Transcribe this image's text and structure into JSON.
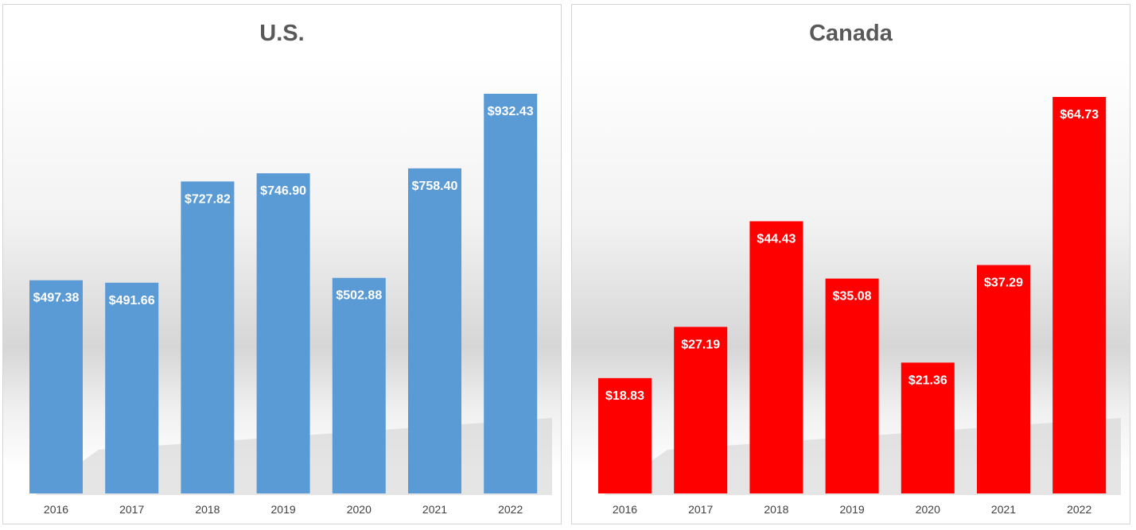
{
  "chart_data": [
    {
      "type": "bar",
      "title": "U.S.",
      "categories": [
        "2016",
        "2017",
        "2018",
        "2019",
        "2020",
        "2021",
        "2022"
      ],
      "values": [
        497.38,
        491.66,
        727.82,
        746.9,
        502.88,
        758.4,
        932.43
      ],
      "data_labels": [
        "$497.38",
        "$491.66",
        "$727.82",
        "$746.90",
        "$502.88",
        "$758.40",
        "$932.43"
      ],
      "color": "#5b9bd5",
      "xlabel": "",
      "ylabel": "",
      "ylim": [
        0,
        1000
      ],
      "grid": false,
      "legend": "none"
    },
    {
      "type": "bar",
      "title": "Canada",
      "categories": [
        "2016",
        "2017",
        "2018",
        "2019",
        "2020",
        "2021",
        "2022"
      ],
      "values": [
        18.83,
        27.19,
        44.43,
        35.08,
        21.36,
        37.29,
        64.73
      ],
      "data_labels": [
        "$18.83",
        "$27.19",
        "$44.43",
        "$35.08",
        "$21.36",
        "$37.29",
        "$64.73"
      ],
      "color": "#ff0000",
      "xlabel": "",
      "ylabel": "",
      "ylim": [
        0,
        70
      ],
      "grid": false,
      "legend": "none"
    }
  ]
}
